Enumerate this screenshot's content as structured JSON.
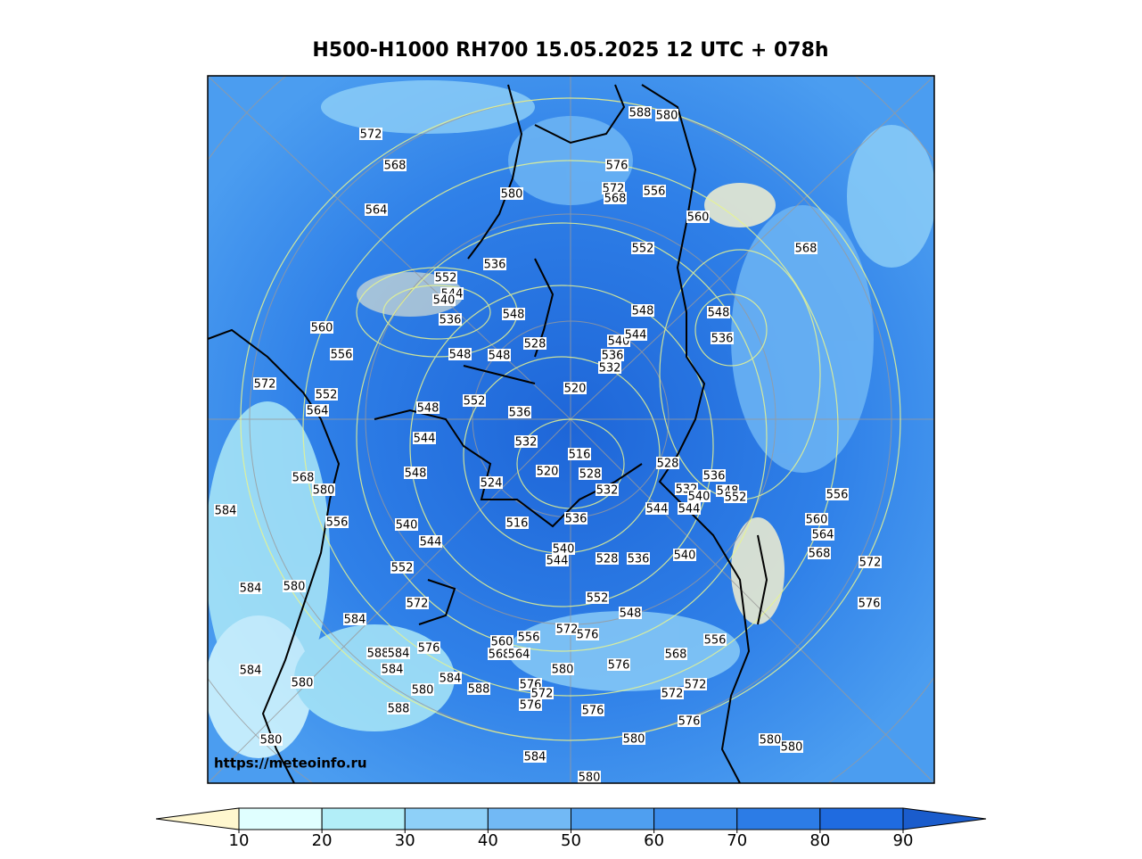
{
  "title": "H500-H1000 RH700 15.05.2025 12 UTC + 078h",
  "watermark": "https://meteoinfo.ru",
  "colorbar": {
    "ticks": [
      10,
      20,
      30,
      40,
      50,
      60,
      70,
      80,
      90
    ],
    "lim": [
      10,
      90
    ],
    "colors": [
      "#fff7cf",
      "#e0ffff",
      "#b2eef8",
      "#8ed0f8",
      "#72b9f5",
      "#4f9ff0",
      "#3b8ceb",
      "#2c7ce6",
      "#1f6be0",
      "#1a5ccc"
    ]
  },
  "contour_labels": [
    "572",
    "568",
    "564",
    "560",
    "556",
    "572",
    "552",
    "564",
    "568",
    "580",
    "584",
    "556",
    "540",
    "544",
    "552",
    "584",
    "580",
    "584",
    "572",
    "576",
    "588",
    "584",
    "584",
    "584",
    "580",
    "580",
    "584",
    "588",
    "588",
    "580",
    "584",
    "580",
    "560",
    "556",
    "568",
    "564",
    "572",
    "576",
    "580",
    "576",
    "572",
    "576",
    "576",
    "576",
    "580",
    "576",
    "572",
    "572",
    "568",
    "556",
    "548",
    "552",
    "540",
    "544",
    "528",
    "536",
    "540",
    "536",
    "516",
    "524",
    "520",
    "516",
    "528",
    "532",
    "528",
    "536",
    "532",
    "540",
    "544",
    "544",
    "548",
    "552",
    "556",
    "560",
    "564",
    "568",
    "572",
    "576",
    "580",
    "580",
    "536",
    "532",
    "552",
    "548",
    "544",
    "548",
    "548",
    "548",
    "536",
    "544",
    "540",
    "552",
    "536",
    "548",
    "528",
    "520",
    "532",
    "536",
    "540",
    "544",
    "548",
    "548",
    "536",
    "552",
    "556",
    "560",
    "568",
    "572",
    "568",
    "576",
    "588",
    "580",
    "580"
  ]
}
